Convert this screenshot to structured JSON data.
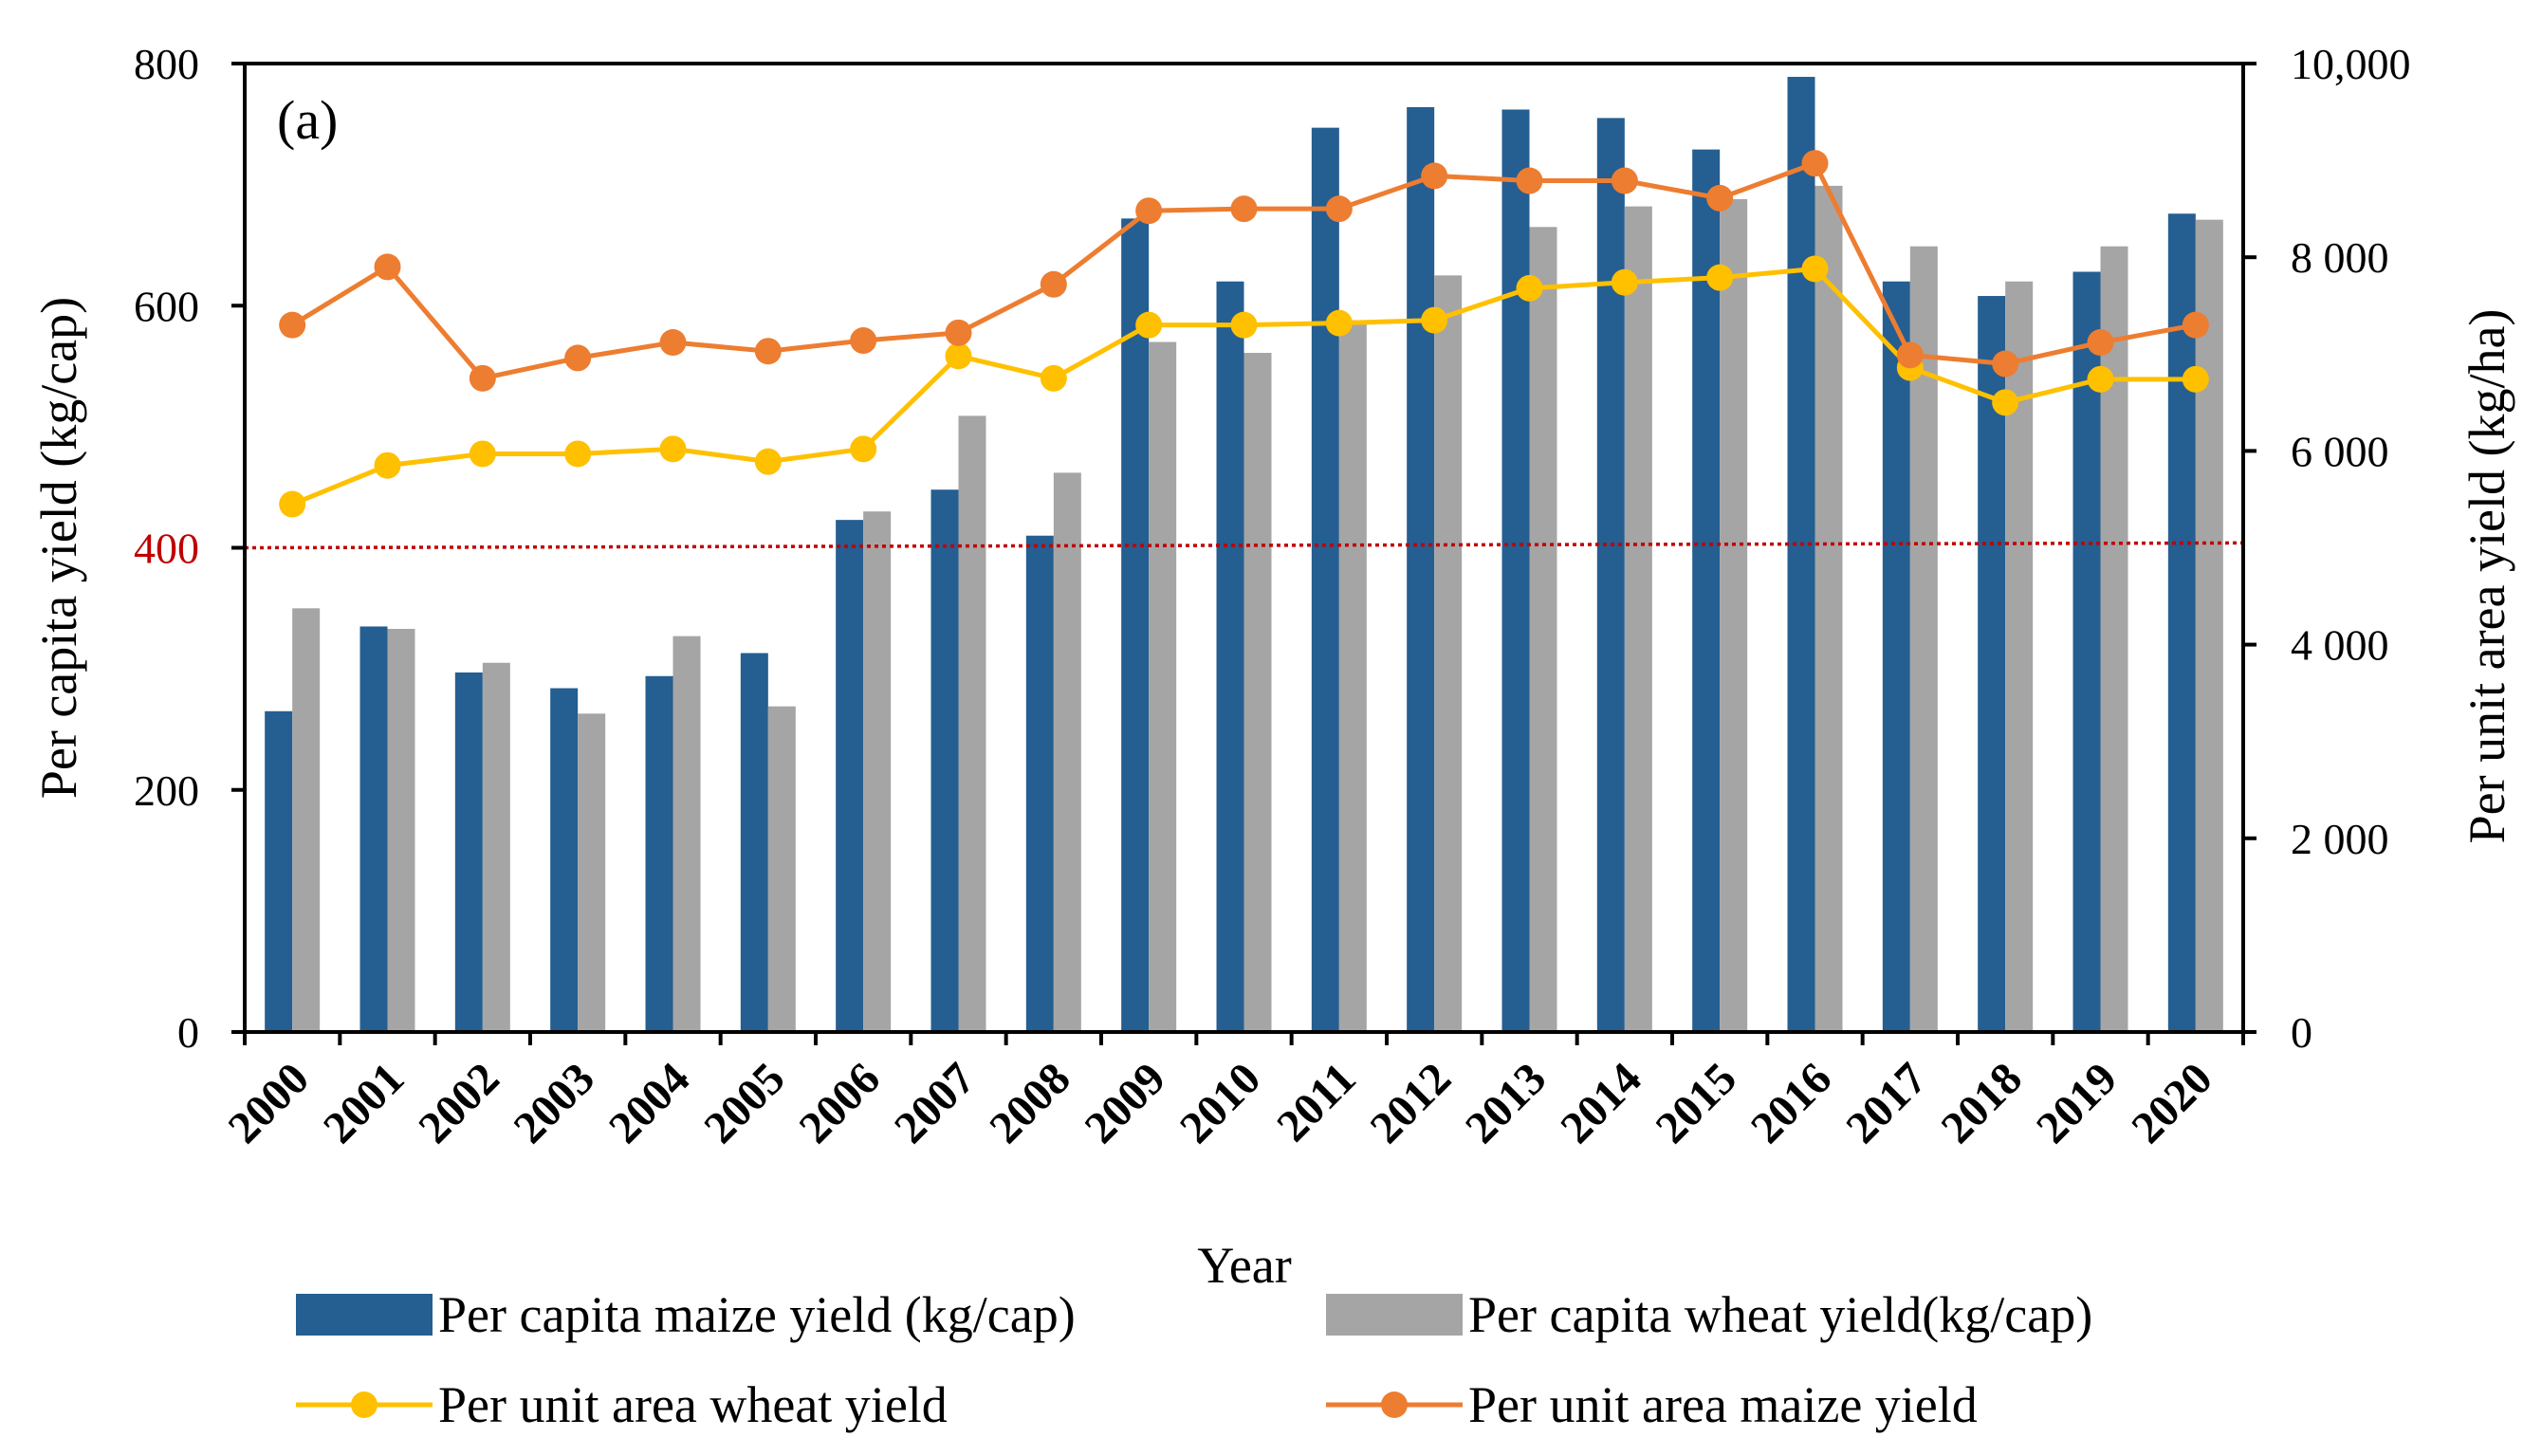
{
  "chart_data": {
    "type": "bar+line",
    "panel_label": "(a)",
    "xlabel": "Year",
    "ylabel_left": "Per capita yield (kg/cap)",
    "ylabel_right": "Per unit area yield (kg/ha)",
    "ylim_left": [
      0,
      800
    ],
    "ylim_right": [
      0,
      10000
    ],
    "left_ticks": [
      {
        "value": 0,
        "label": "0"
      },
      {
        "value": 200,
        "label": "200"
      },
      {
        "value": 400,
        "label": "400"
      },
      {
        "value": 600,
        "label": "600"
      },
      {
        "value": 800,
        "label": "800"
      }
    ],
    "right_ticks": [
      {
        "value": 0,
        "label": "0"
      },
      {
        "value": 2000,
        "label": "2 000"
      },
      {
        "value": 4000,
        "label": "4 000"
      },
      {
        "value": 6000,
        "label": "6 000"
      },
      {
        "value": 8000,
        "label": "8 000"
      },
      {
        "value": 10000,
        "label": "10,000"
      }
    ],
    "highlight_tick_value": 400,
    "categories": [
      "2000",
      "2001",
      "2002",
      "2003",
      "2004",
      "2005",
      "2006",
      "2007",
      "2008",
      "2009",
      "2010",
      "2011",
      "2012",
      "2013",
      "2014",
      "2015",
      "2016",
      "2017",
      "2018",
      "2019",
      "2020"
    ],
    "bar_series": [
      {
        "name": "Per capita maize yield (kg/cap)",
        "color": "#255E91",
        "values": [
          265,
          335,
          297,
          284,
          294,
          313,
          423,
          448,
          410,
          672,
          620,
          747,
          764,
          762,
          755,
          729,
          789,
          620,
          608,
          628,
          676
        ]
      },
      {
        "name": "Per capita wheat yield(kg/cap)",
        "color": "#A5A5A5",
        "values": [
          350,
          333,
          305,
          263,
          327,
          269,
          430,
          509,
          462,
          570,
          561,
          588,
          625,
          665,
          682,
          688,
          699,
          649,
          620,
          649,
          671
        ]
      }
    ],
    "line_series": [
      {
        "name": "Per unit area wheat yield",
        "color": "#FFC000",
        "axis": "right",
        "values": [
          5450,
          5850,
          5970,
          5970,
          6020,
          5890,
          6020,
          6980,
          6750,
          7300,
          7300,
          7320,
          7350,
          7680,
          7740,
          7790,
          7880,
          6860,
          6500,
          6740,
          6740
        ]
      },
      {
        "name": "Per unit area maize yield",
        "color": "#ED7D31",
        "axis": "right",
        "values": [
          7300,
          7900,
          6750,
          6960,
          7120,
          7030,
          7140,
          7220,
          7720,
          8480,
          8500,
          8500,
          8840,
          8790,
          8790,
          8610,
          8970,
          6990,
          6900,
          7120,
          7300
        ]
      }
    ],
    "reference_line": {
      "from_value": 400,
      "to_value": 404,
      "color": "#C00000",
      "style": "dotted"
    },
    "legend": {
      "placement": "bottom",
      "columns": 2
    }
  }
}
